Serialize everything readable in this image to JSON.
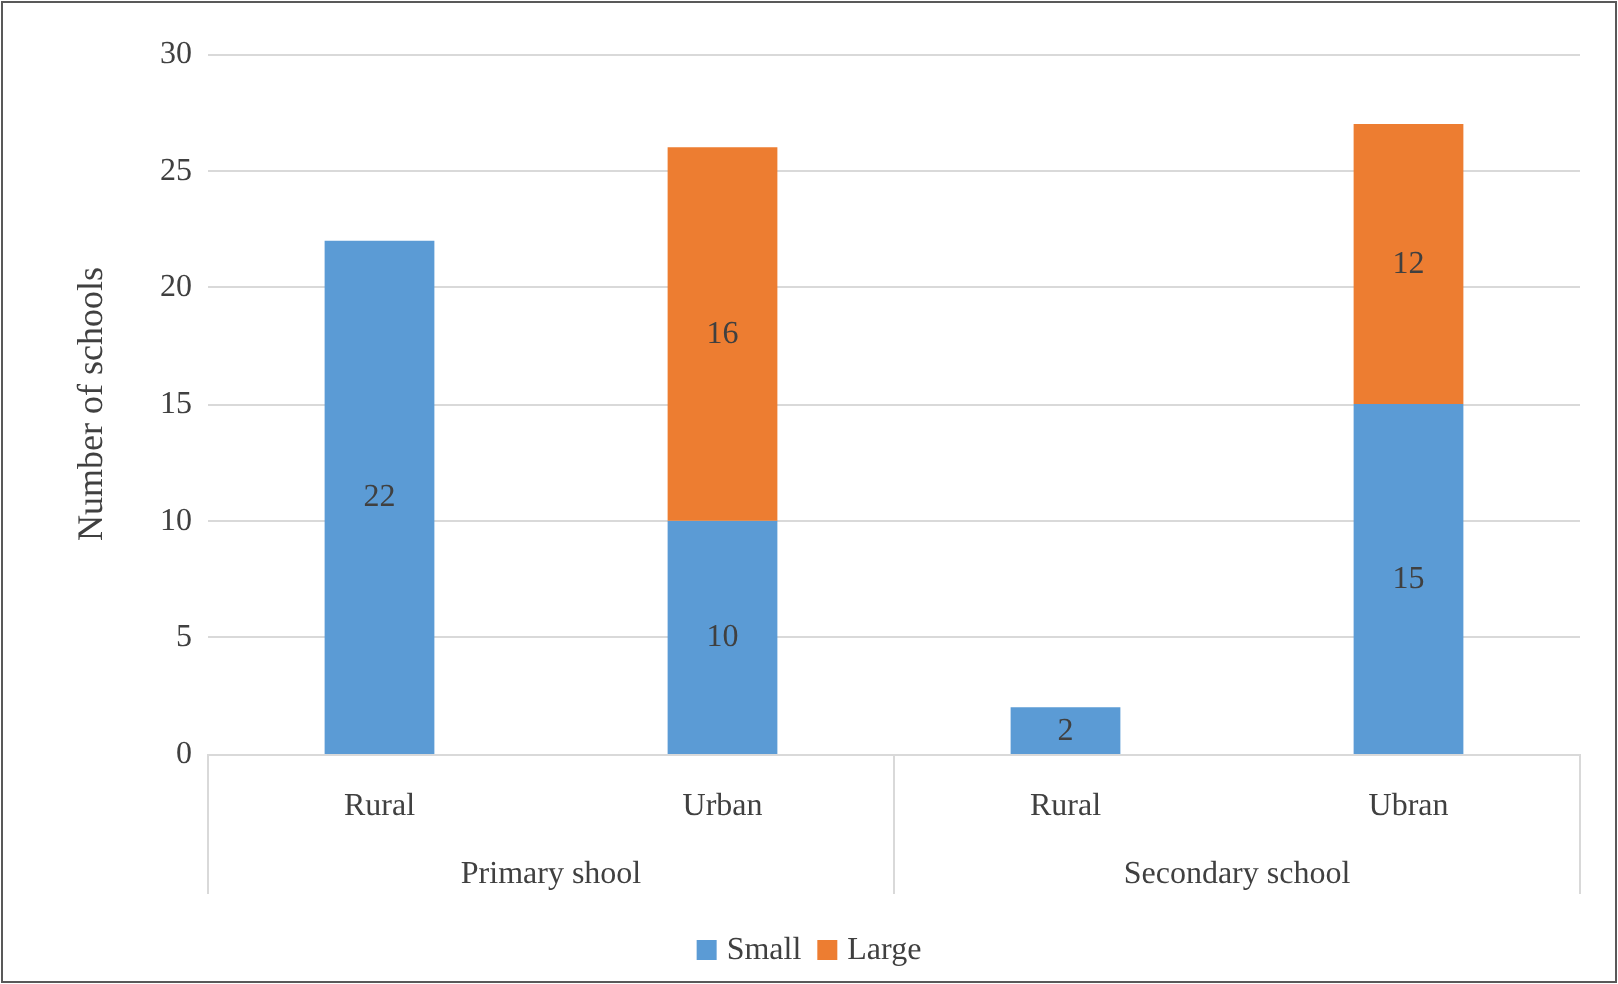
{
  "chart_data": {
    "type": "bar",
    "stacked": true,
    "ylabel": "Number of schools",
    "categories": [
      "Rural",
      "Urban",
      "Rural",
      "Ubran"
    ],
    "series": [
      {
        "name": "Small",
        "color": "#5b9bd5",
        "values": [
          22,
          10,
          2,
          15
        ]
      },
      {
        "name": "Large",
        "color": "#ed7d31",
        "values": [
          null,
          16,
          null,
          12
        ]
      }
    ],
    "annotations": [
      "Primary shool",
      "Secondary school"
    ],
    "ylim": [
      0,
      30
    ],
    "yticks": [
      0,
      5,
      10,
      15,
      20,
      25,
      30
    ],
    "grid": "y",
    "legend": "bottom",
    "data_labels": true
  }
}
